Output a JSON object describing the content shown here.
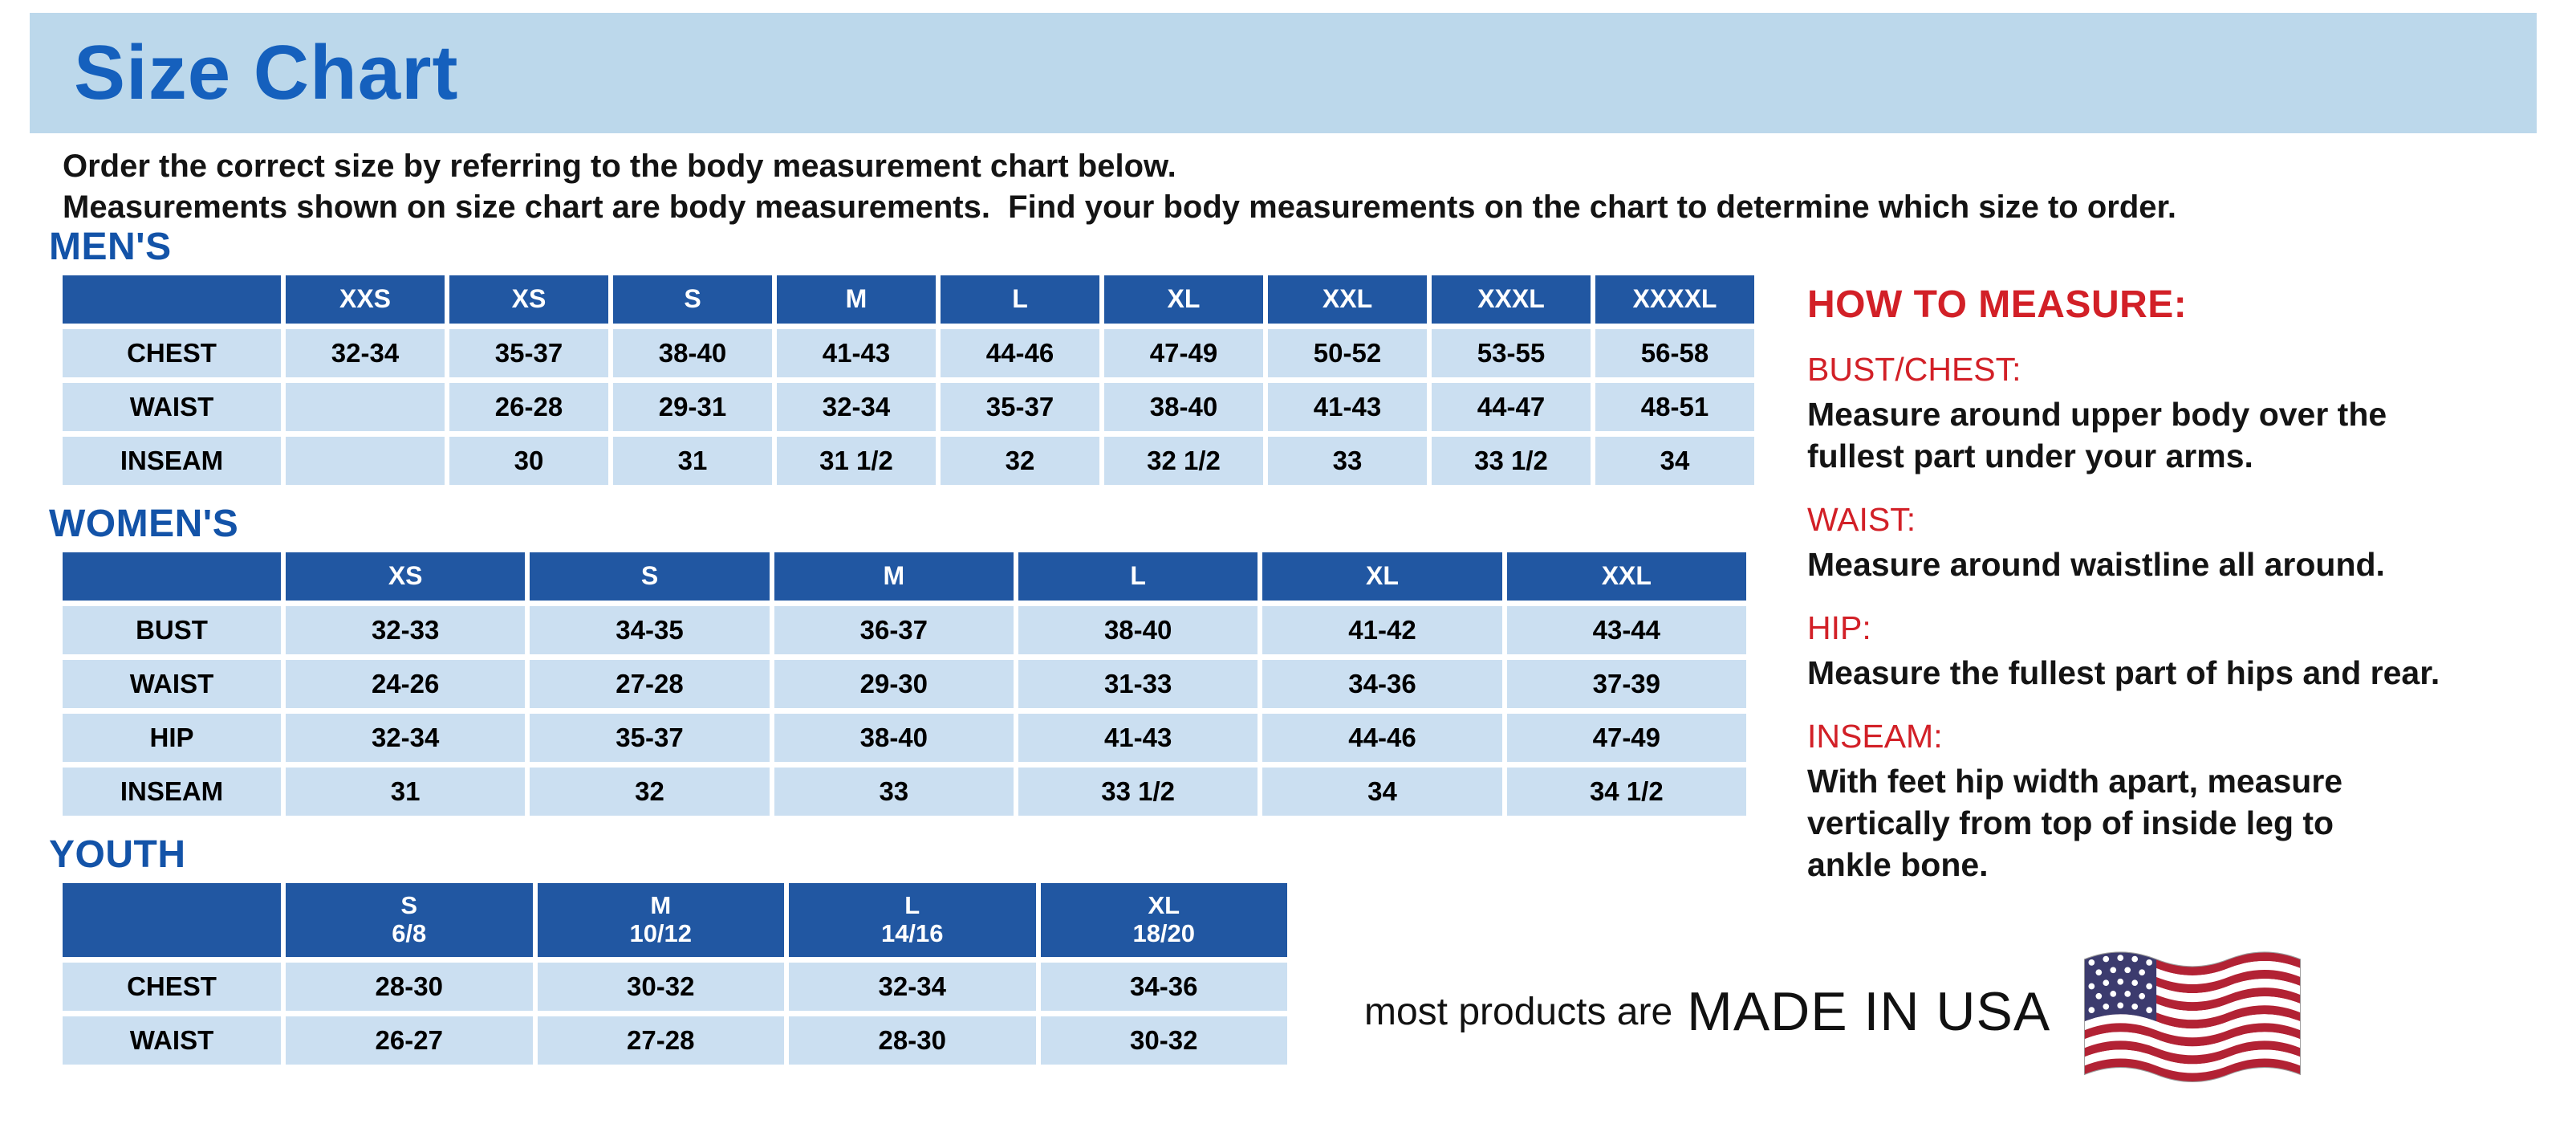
{
  "page": {
    "title": "Size Chart",
    "intro_line1": "Order the correct size by referring to the body measurement chart below.",
    "intro_line2": "Measurements shown on size chart are body measurements.  Find your body measurements on the chart to determine which size to order."
  },
  "tables": {
    "mens": {
      "section_title": "MEN'S",
      "headers": [
        "",
        "XXS",
        "XS",
        "S",
        "M",
        "L",
        "XL",
        "XXL",
        "XXXL",
        "XXXXL"
      ],
      "rows": [
        {
          "label": "CHEST",
          "cells": [
            "32-34",
            "35-37",
            "38-40",
            "41-43",
            "44-46",
            "47-49",
            "50-52",
            "53-55",
            "56-58"
          ]
        },
        {
          "label": "WAIST",
          "cells": [
            "",
            "26-28",
            "29-31",
            "32-34",
            "35-37",
            "38-40",
            "41-43",
            "44-47",
            "48-51"
          ]
        },
        {
          "label": "INSEAM",
          "cells": [
            "",
            "30",
            "31",
            "31 1/2",
            "32",
            "32 1/2",
            "33",
            "33 1/2",
            "34"
          ]
        }
      ]
    },
    "womens": {
      "section_title": "WOMEN'S",
      "headers": [
        "",
        "XS",
        "S",
        "M",
        "L",
        "XL",
        "XXL"
      ],
      "rows": [
        {
          "label": "BUST",
          "cells": [
            "32-33",
            "34-35",
            "36-37",
            "38-40",
            "41-42",
            "43-44"
          ]
        },
        {
          "label": "WAIST",
          "cells": [
            "24-26",
            "27-28",
            "29-30",
            "31-33",
            "34-36",
            "37-39"
          ]
        },
        {
          "label": "HIP",
          "cells": [
            "32-34",
            "35-37",
            "38-40",
            "41-43",
            "44-46",
            "47-49"
          ]
        },
        {
          "label": "INSEAM",
          "cells": [
            "31",
            "32",
            "33",
            "33 1/2",
            "34",
            "34 1/2"
          ]
        }
      ]
    },
    "youth": {
      "section_title": "YOUTH",
      "headers": [
        "",
        "S\n6/8",
        "M\n10/12",
        "L\n14/16",
        "XL\n18/20"
      ],
      "rows": [
        {
          "label": "CHEST",
          "cells": [
            "28-30",
            "30-32",
            "32-34",
            "34-36"
          ]
        },
        {
          "label": "WAIST",
          "cells": [
            "26-27",
            "27-28",
            "28-30",
            "30-32"
          ]
        }
      ]
    }
  },
  "how_to_measure": {
    "title": "HOW TO MEASURE:",
    "items": [
      {
        "label": "BUST/CHEST:",
        "text": "Measure around upper body over the\nfullest part under your arms."
      },
      {
        "label": "WAIST:",
        "text": "Measure around waistline all around."
      },
      {
        "label": "HIP:",
        "text": "Measure the fullest part of hips and rear."
      },
      {
        "label": "INSEAM:",
        "text": "With feet hip width apart, measure\nvertically from top of inside leg to\nankle bone."
      }
    ]
  },
  "footer": {
    "made_in_prefix": "most products are",
    "made_in": "MADE IN USA",
    "flag_icon": "us-flag-icon"
  },
  "colors": {
    "title_blue": "#1560bd",
    "section_blue": "#1353a8",
    "table_header_blue": "#2157a2",
    "cell_light_blue": "#cbdff1",
    "banner_light_blue": "#bcd8eb",
    "accent_red": "#d22027",
    "flag_red": "#b22234",
    "flag_navy": "#3c3b6e"
  }
}
